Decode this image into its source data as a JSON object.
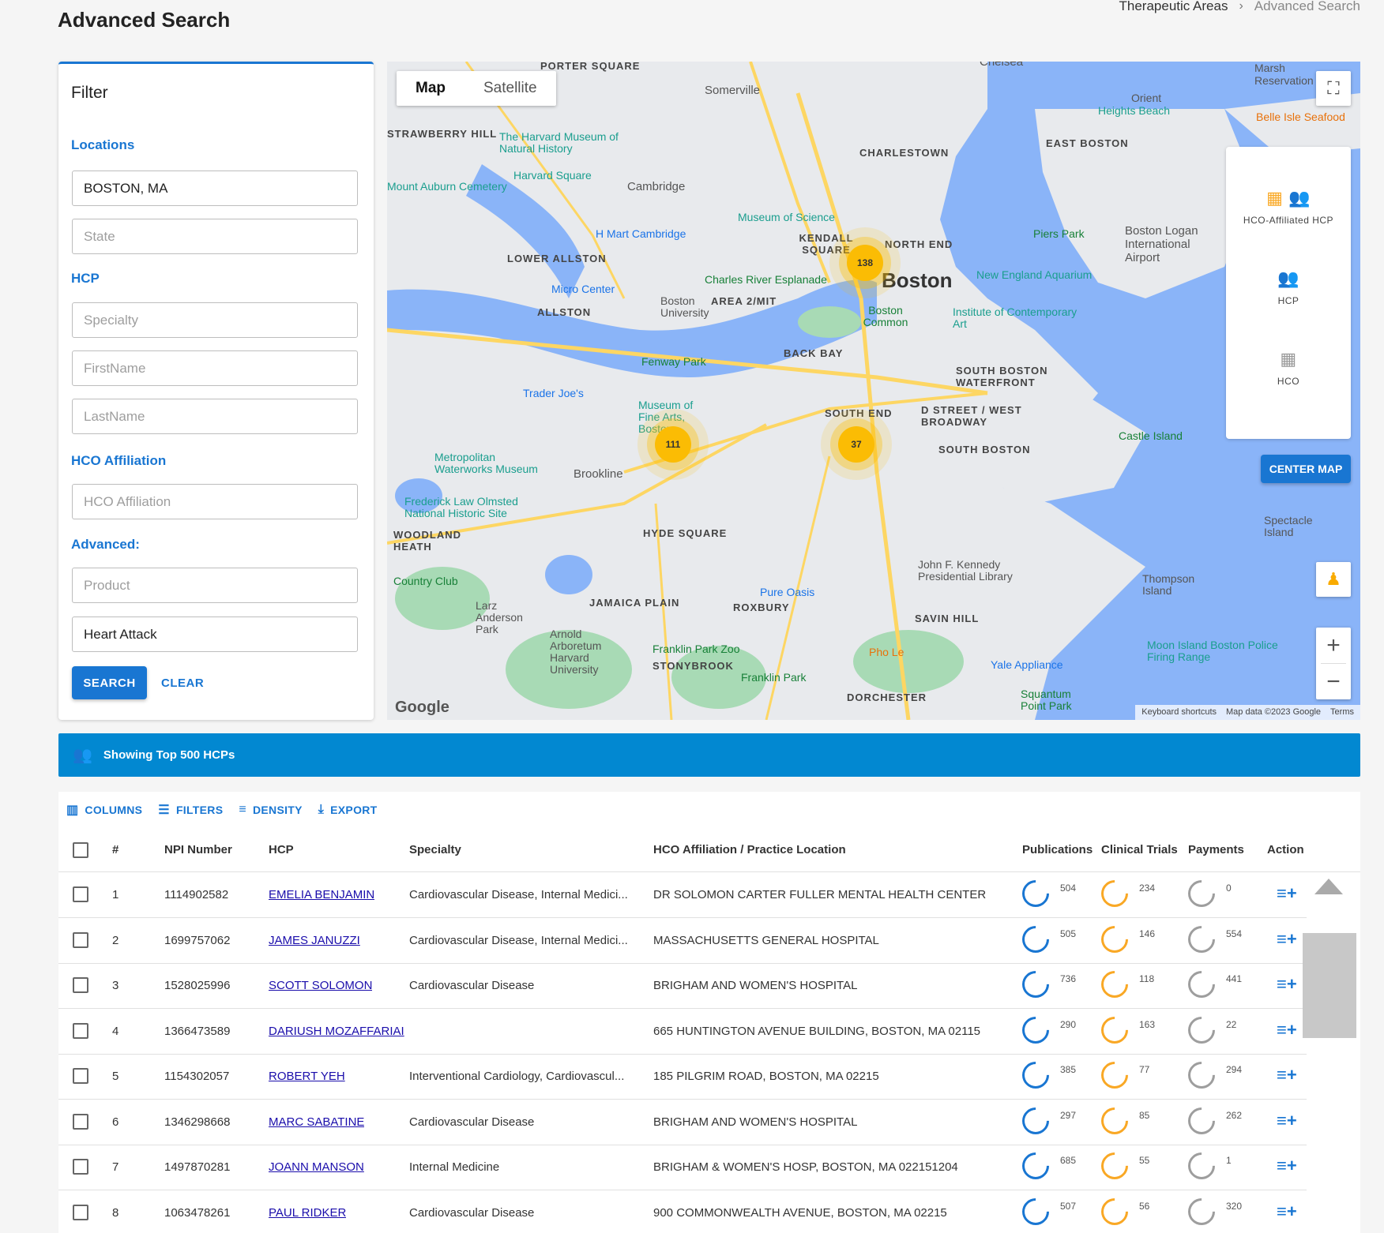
{
  "page": {
    "title": "Advanced Search",
    "breadcrumb": [
      "Therapeutic Areas",
      "Advanced Search"
    ]
  },
  "filter": {
    "title": "Filter",
    "sections": {
      "locations": "Locations",
      "hcp": "HCP",
      "hco": "HCO Affiliation",
      "advanced": "Advanced:"
    },
    "fields": {
      "city": {
        "value": "BOSTON, MA",
        "placeholder": ""
      },
      "state": {
        "value": "",
        "placeholder": "State"
      },
      "specialty": {
        "value": "",
        "placeholder": "Specialty"
      },
      "firstname": {
        "value": "",
        "placeholder": "FirstName"
      },
      "lastname": {
        "value": "",
        "placeholder": "LastName"
      },
      "hco": {
        "value": "",
        "placeholder": "HCO Affiliation"
      },
      "product": {
        "value": "",
        "placeholder": "Product"
      },
      "condition": {
        "value": "Heart Attack",
        "placeholder": ""
      }
    },
    "search_label": "SEARCH",
    "clear_label": "CLEAR"
  },
  "map": {
    "type_tabs": [
      "Map",
      "Satellite"
    ],
    "active_tab": "Map",
    "layers": [
      "HCO-Affiliated HCP",
      "HCP",
      "HCO"
    ],
    "center_label": "CENTER MAP",
    "clusters": [
      "138",
      "111",
      "37"
    ],
    "labels": {
      "boston": "Boston",
      "somerville": "Somerville",
      "cambridge": "Cambridge",
      "chelsea": "Chelsea",
      "charlestown": "CHARLESTOWN",
      "east_boston": "EAST BOSTON",
      "north_end": "NORTH END",
      "back_bay": "BACK BAY",
      "south_end": "SOUTH END",
      "brookline": "Brookline",
      "allston": "ALLSTON",
      "lower_allston": "LOWER ALLSTON",
      "kendall": "KENDALL SQUARE",
      "hyde_square": "HYDE SQUARE",
      "jamaica_plain": "JAMAICA PLAIN",
      "roxbury": "ROXBURY",
      "dorchester": "DORCHESTER",
      "south_boston": "SOUTH BOSTON",
      "porter_square": "PORTER SQUARE",
      "strawberry_hill": "STRAWBERRY HILL",
      "harvard_museum": "The Harvard Museum of Natural History",
      "harvard_square": "Harvard Square",
      "museum_of_science": "Museum of Science",
      "fenway": "Fenway Park",
      "boston_common": "Boston Common",
      "ne_aquarium": "New England Aquarium",
      "logan": "Boston Logan International Airport",
      "piers_park": "Piers Park",
      "castle_island": "Castle Island",
      "mfa": "Museum of Fine Arts, Boston",
      "trader_joes": "Trader Joe's",
      "jfk_library": "John F. Kennedy Presidential Library",
      "thompson_island": "Thompson Island",
      "spectacle_island": "Spectacle Island",
      "franklin_park_zoo": "Franklin Park Zoo",
      "arnold_arboretum": "Arnold Arboretum Harvard University",
      "pure_oasis": "Pure Oasis",
      "charles_river": "Charles River Esplanade",
      "bu": "Boston University",
      "moon_island": "Moon Island Boston Police Firing Range",
      "metropolitan": "Metropolitan Waterworks Museum",
      "olmsted": "Frederick Law Olmsted National Historic Site",
      "mount_auburn": "Mount Auburn Cemetery",
      "hmart": "H Mart Cambridge",
      "micro_center": "Micro Center",
      "ica": "Institute of Contemporary Art",
      "south_boston_waterfront": "SOUTH BOSTON WATERFRONT",
      "d_street": "D STREET / WEST BROADWAY",
      "savin_hill": "SAVIN HILL",
      "stonybrook": "STONYBROOK",
      "woodland_heath": "WOODLAND HEATH",
      "larz_anderson": "Larz Anderson Park",
      "country_club": "Country Club",
      "franklin_park": "Franklin Park",
      "pho_le": "Pho Le",
      "yale_appliance": "Yale Appliance",
      "squantum": "Squantum Point Park",
      "heights_beach": "Heights Beach",
      "belle_isle": "Belle Isle Seafood",
      "marsh": "Marsh Reservation",
      "orient": "Orient",
      "area_2_mit": "AREA 2/MIT"
    },
    "footer": [
      "Keyboard shortcuts",
      "Map data ©2023 Google",
      "Terms"
    ],
    "logo": "Google"
  },
  "banner": {
    "text": "Showing Top 500 HCPs"
  },
  "grid": {
    "toolbar": [
      "COLUMNS",
      "FILTERS",
      "DENSITY",
      "EXPORT"
    ],
    "columns": [
      "#",
      "NPI Number",
      "HCP",
      "Specialty",
      "HCO Affiliation / Practice Location",
      "Publications",
      "Clinical Trials",
      "Payments",
      "Action"
    ],
    "rows": [
      {
        "n": "1",
        "npi": "1114902582",
        "hcp": "EMELIA BENJAMIN",
        "specialty": "Cardiovascular Disease, Internal Medici...",
        "hco": "DR SOLOMON CARTER FULLER MENTAL HEALTH CENTER",
        "pub": "504",
        "trials": "234",
        "pay": "0"
      },
      {
        "n": "2",
        "npi": "1699757062",
        "hcp": "JAMES JANUZZI",
        "specialty": "Cardiovascular Disease, Internal Medici...",
        "hco": "MASSACHUSETTS GENERAL HOSPITAL",
        "pub": "505",
        "trials": "146",
        "pay": "554"
      },
      {
        "n": "3",
        "npi": "1528025996",
        "hcp": "SCOTT SOLOMON",
        "specialty": "Cardiovascular Disease",
        "hco": "BRIGHAM AND WOMEN'S HOSPITAL",
        "pub": "736",
        "trials": "118",
        "pay": "441"
      },
      {
        "n": "4",
        "npi": "1366473589",
        "hcp": "DARIUSH MOZAFFARIAI",
        "specialty": "",
        "hco": "665 HUNTINGTON AVENUE BUILDING, BOSTON, MA 02115",
        "pub": "290",
        "trials": "163",
        "pay": "22"
      },
      {
        "n": "5",
        "npi": "1154302057",
        "hcp": "ROBERT YEH",
        "specialty": "Interventional Cardiology, Cardiovascul...",
        "hco": "185 PILGRIM ROAD, BOSTON, MA 02215",
        "pub": "385",
        "trials": "77",
        "pay": "294"
      },
      {
        "n": "6",
        "npi": "1346298668",
        "hcp": "MARC SABATINE",
        "specialty": "Cardiovascular Disease",
        "hco": "BRIGHAM AND WOMEN'S HOSPITAL",
        "pub": "297",
        "trials": "85",
        "pay": "262"
      },
      {
        "n": "7",
        "npi": "1497870281",
        "hcp": "JOANN MANSON",
        "specialty": "Internal Medicine",
        "hco": "BRIGHAM & WOMEN'S HOSP, BOSTON, MA 022151204",
        "pub": "685",
        "trials": "55",
        "pay": "1"
      },
      {
        "n": "8",
        "npi": "1063478261",
        "hcp": "PAUL RIDKER",
        "specialty": "Cardiovascular Disease",
        "hco": "900 COMMONWEALTH AVENUE, BOSTON, MA 02215",
        "pub": "507",
        "trials": "56",
        "pay": "320"
      }
    ]
  },
  "colors": {
    "primary": "#1976d2",
    "banner": "#0288d1",
    "cluster": "#fbbc04",
    "trials": "#f9a825",
    "payments": "#9e9e9e"
  }
}
